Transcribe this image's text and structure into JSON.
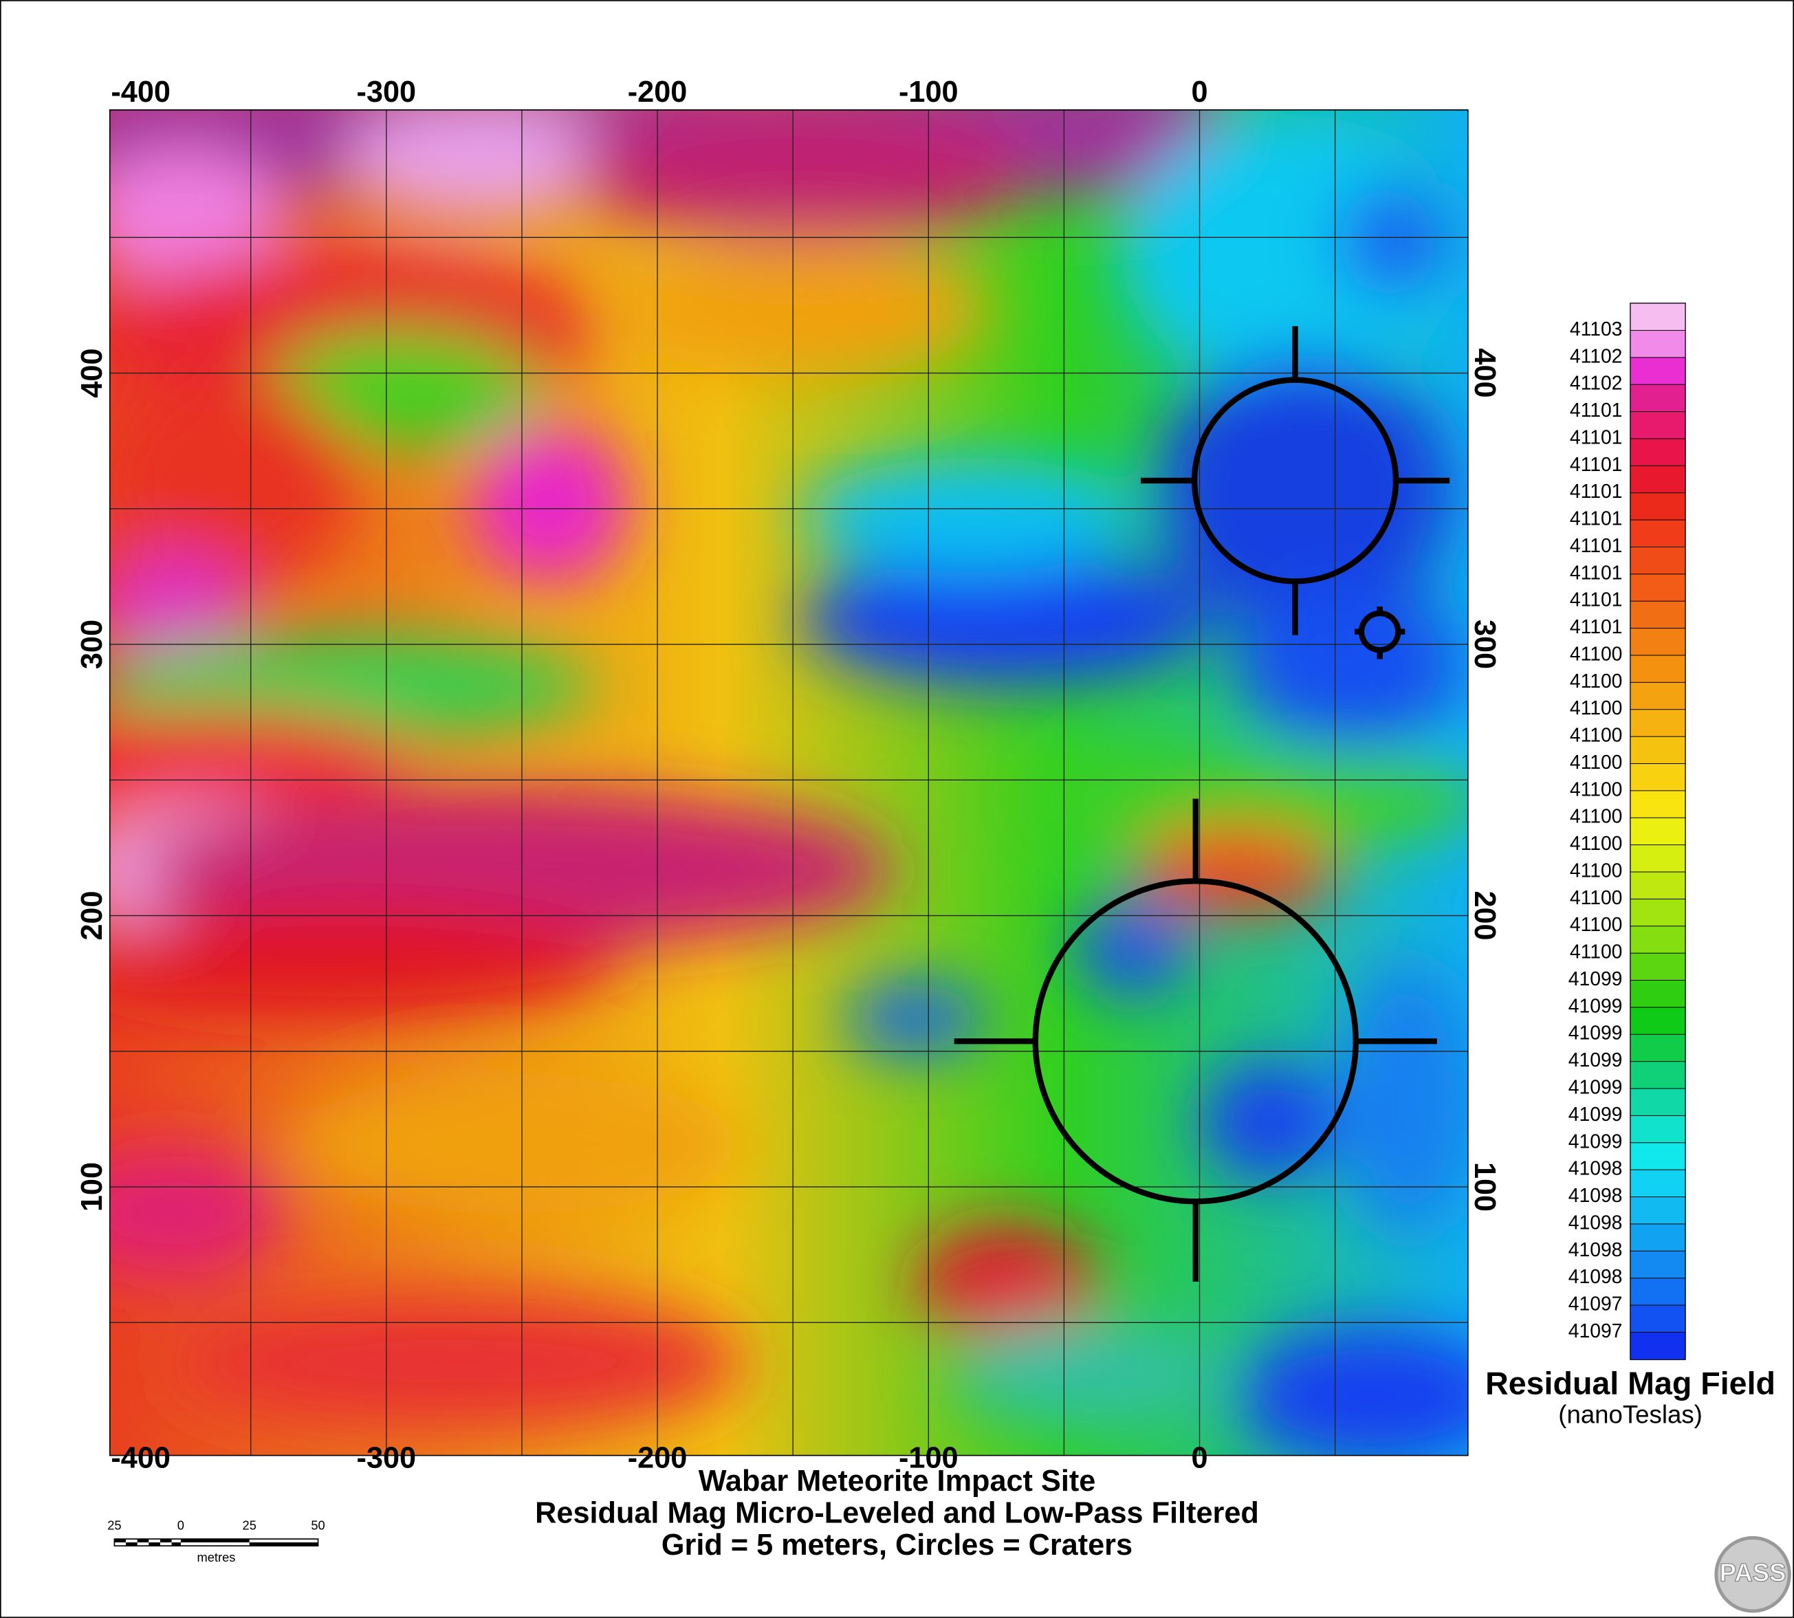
{
  "map": {
    "title_lines": [
      "Wabar Meteorite Impact Site",
      "Residual Mag Micro-Leveled and Low-Pass Filtered",
      "Grid = 5 meters, Circles = Craters"
    ],
    "xlim": [
      -402,
      99
    ],
    "ylim": [
      1,
      497
    ],
    "xticks": [
      -400,
      -300,
      -200,
      -100,
      0
    ],
    "yticks": [
      100,
      200,
      300,
      400
    ],
    "xgrid": [
      -350,
      -300,
      -250,
      -200,
      -150,
      -100,
      -50,
      0,
      50
    ],
    "ygrid": [
      50,
      100,
      150,
      200,
      250,
      300,
      350,
      400,
      450
    ],
    "grid": true,
    "legend": {
      "title": "Residual Mag Field",
      "subtitle": "(nanoTeslas)",
      "labels": [
        "41103",
        "41102",
        "41102",
        "41101",
        "41101",
        "41101",
        "41101",
        "41101",
        "41101",
        "41101",
        "41101",
        "41101",
        "41100",
        "41100",
        "41100",
        "41100",
        "41100",
        "41100",
        "41100",
        "41100",
        "41100",
        "41100",
        "41100",
        "41100",
        "41099",
        "41099",
        "41099",
        "41099",
        "41099",
        "41099",
        "41099",
        "41098",
        "41098",
        "41098",
        "41098",
        "41098",
        "41097",
        "41097"
      ],
      "colors": [
        "#f6bdf0",
        "#f28ae9",
        "#ea2fd2",
        "#e2208f",
        "#e81a6e",
        "#e8144a",
        "#e8182e",
        "#ec2a1c",
        "#f03c18",
        "#f04c18",
        "#f25c16",
        "#f26e14",
        "#f28012",
        "#f49210",
        "#f4a210",
        "#f6b210",
        "#f6c210",
        "#f8d210",
        "#fae410",
        "#ecf010",
        "#d6ee10",
        "#bee810",
        "#a2e410",
        "#84de10",
        "#5cd610",
        "#30ce10",
        "#10ca18",
        "#10cc48",
        "#10d078",
        "#10d8a6",
        "#10e2cc",
        "#10e8ec",
        "#12d2f4",
        "#12baf2",
        "#12a2f2",
        "#128af2",
        "#1270f2",
        "#1252f2",
        "#1230f0"
      ]
    },
    "scale_bar": {
      "labels": [
        "25",
        "0",
        "25",
        "50"
      ],
      "unit": "metres"
    },
    "logo": "PASS"
  }
}
